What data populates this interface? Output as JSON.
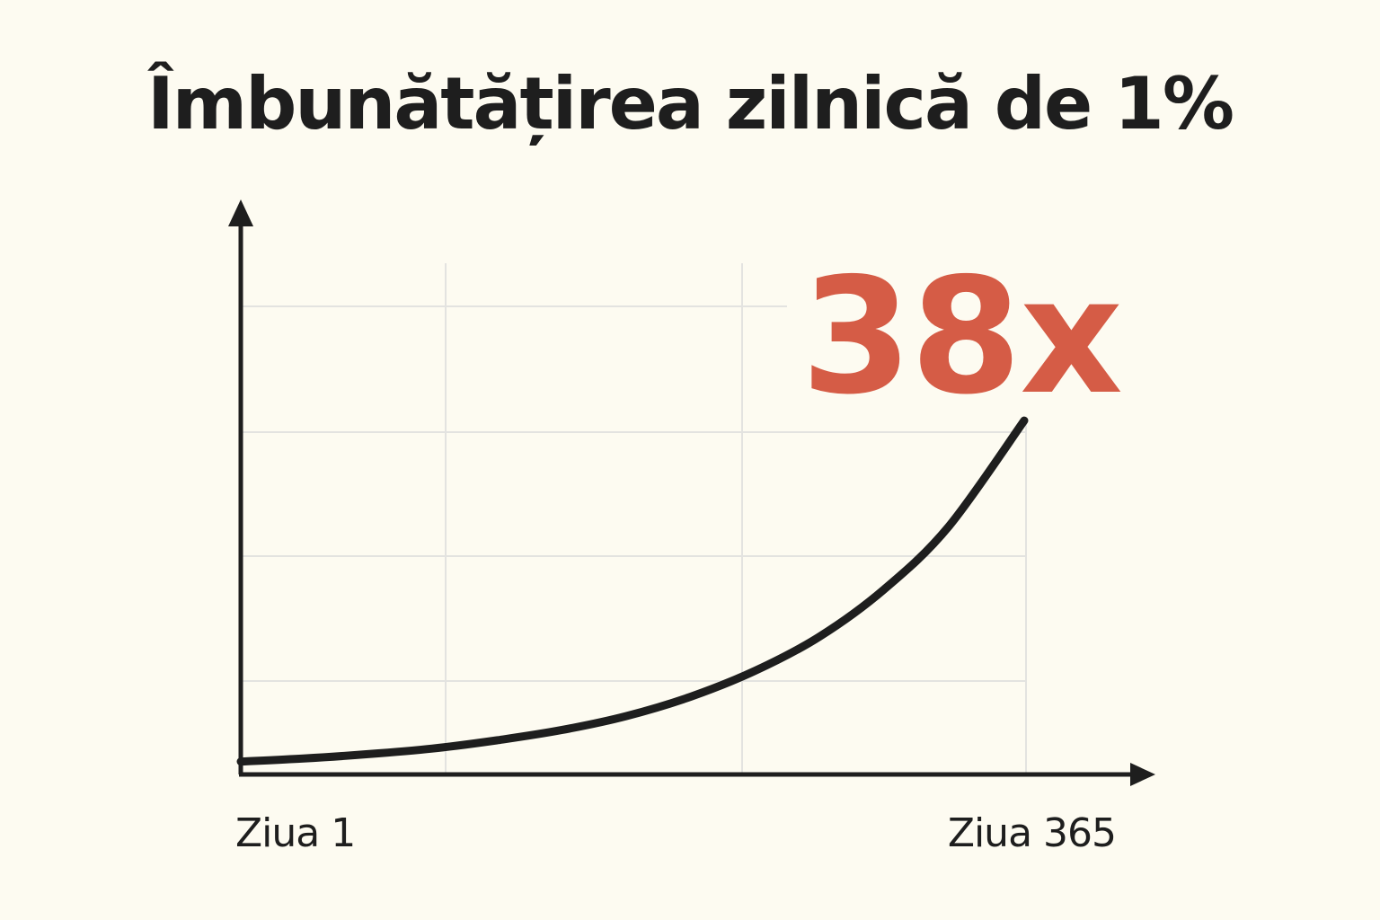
{
  "chart_data": {
    "type": "line",
    "title": "Îmbunătățirea zilnică de 1%",
    "xlabel": "",
    "ylabel": "",
    "x_ticks": [
      "Ziua 1",
      "Ziua 365"
    ],
    "xlim": [
      1,
      365
    ],
    "ylim": [
      0,
      38
    ],
    "grid": true,
    "series": [
      {
        "x": [
          1,
          30,
          60,
          90,
          120,
          150,
          180,
          210,
          240,
          270,
          300,
          330,
          365
        ],
        "values": [
          1.0,
          1.33,
          1.8,
          2.4,
          3.3,
          4.4,
          5.9,
          8.0,
          10.8,
          14.5,
          19.6,
          26.4,
          37.8
        ]
      }
    ],
    "annotation": {
      "text": "38x",
      "color": "#d55c46"
    },
    "colors": {
      "line": "#1e1e1e",
      "axis": "#1e1e1e",
      "grid": "#e3e3e0",
      "background": "#fdfbf1"
    }
  }
}
